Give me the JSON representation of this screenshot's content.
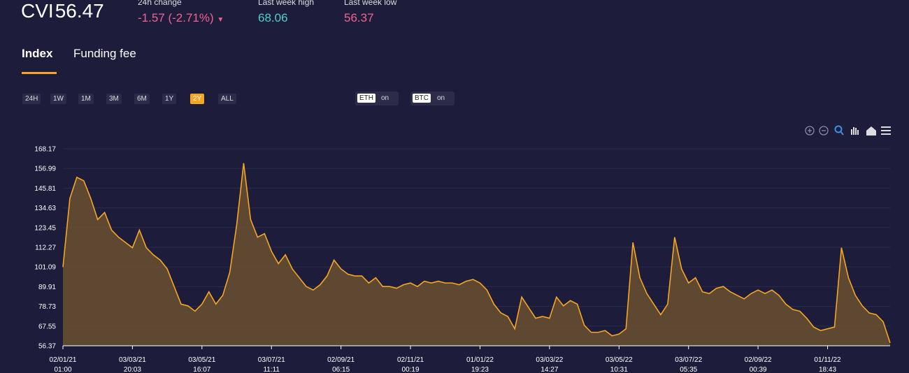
{
  "header": {
    "symbol": "CVI",
    "value": "56.47",
    "stats": [
      {
        "label": "24h change",
        "value": "-1.57 (-2.71%)"
      },
      {
        "label": "Last week high",
        "value": "68.06"
      },
      {
        "label": "Last week low",
        "value": "56.37"
      }
    ]
  },
  "tabs": [
    "Index",
    "Funding fee"
  ],
  "ranges": [
    "24H",
    "1W",
    "1M",
    "3M",
    "6M",
    "1Y",
    "2Y",
    "ALL"
  ],
  "toggles": [
    {
      "name": "ETH",
      "state": "on"
    },
    {
      "name": "BTC",
      "state": "on"
    }
  ],
  "chart_data": {
    "type": "area",
    "color": "#f5a623",
    "fill": "#6b5030",
    "grid": true,
    "ylim": [
      56.37,
      168.17
    ],
    "yticks": [
      56.37,
      67.55,
      78.73,
      89.91,
      101.09,
      112.27,
      123.45,
      134.63,
      145.81,
      156.99,
      168.17
    ],
    "xlim": [
      0,
      119
    ],
    "xticks": [
      {
        "value": 0,
        "label": "02/01/21 01:00"
      },
      {
        "value": 10,
        "label": "03/03/21 20:03"
      },
      {
        "value": 20,
        "label": "03/05/21 16:07"
      },
      {
        "value": 30,
        "label": "03/07/21 11:11"
      },
      {
        "value": 40,
        "label": "02/09/21 06:15"
      },
      {
        "value": 50,
        "label": "02/11/21 00:19"
      },
      {
        "value": 60,
        "label": "01/01/22 19:23"
      },
      {
        "value": 70,
        "label": "03/03/22 14:27"
      },
      {
        "value": 80,
        "label": "03/05/22 10:31"
      },
      {
        "value": 90,
        "label": "03/07/22 05:35"
      },
      {
        "value": 100,
        "label": "02/09/22 00:39"
      },
      {
        "value": 110,
        "label": "01/11/22 18:43"
      }
    ],
    "values": [
      101,
      140,
      152,
      150,
      140,
      128,
      132,
      122,
      118,
      115,
      112,
      122,
      112,
      108,
      105,
      100,
      90,
      80,
      79,
      76,
      80,
      87,
      80,
      85,
      98,
      125,
      160,
      128,
      118,
      120,
      110,
      103,
      108,
      100,
      95,
      90,
      88,
      91,
      96,
      105,
      100,
      97,
      96,
      96,
      92,
      95,
      90,
      90,
      89,
      91,
      92,
      90,
      93,
      92,
      93,
      92,
      92,
      91,
      93,
      94,
      92,
      88,
      80,
      75,
      73,
      66,
      84,
      78,
      72,
      73,
      72,
      84,
      79,
      82,
      80,
      68,
      64,
      64,
      65,
      62,
      63,
      66,
      115,
      95,
      86,
      80,
      74,
      80,
      118,
      100,
      92,
      95,
      87,
      86,
      89,
      90,
      87,
      85,
      83,
      86,
      88,
      86,
      88,
      85,
      80,
      77,
      76,
      72,
      67,
      65,
      66,
      67,
      112,
      95,
      85,
      79,
      75,
      74,
      70,
      58
    ]
  }
}
